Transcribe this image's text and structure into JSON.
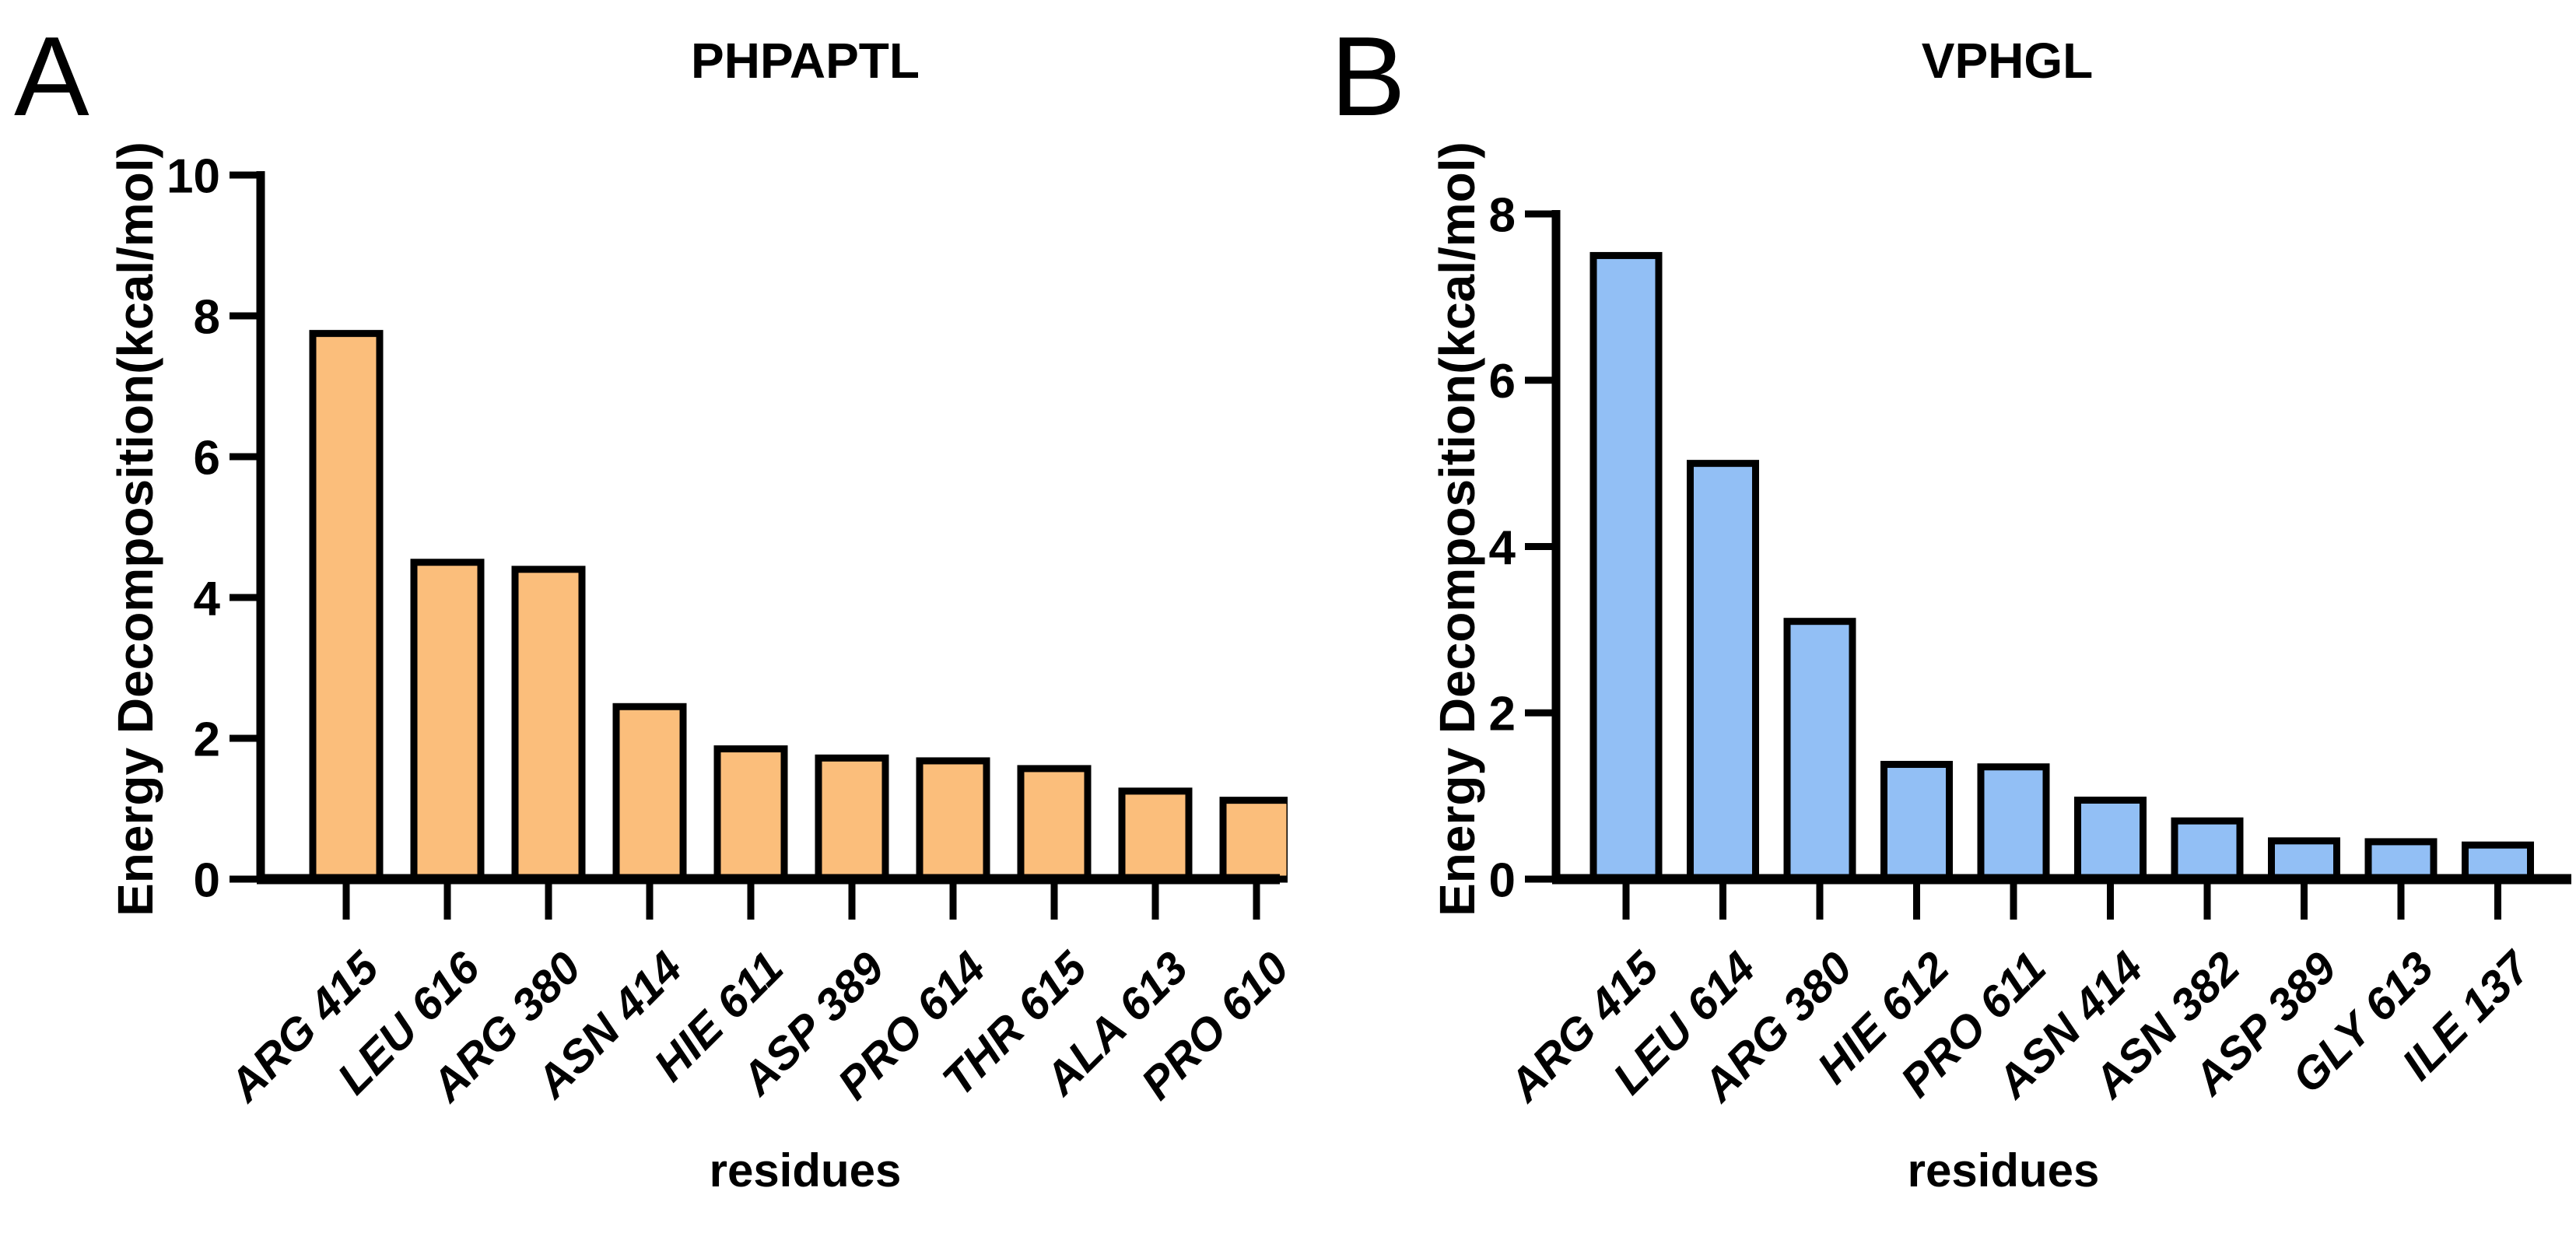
{
  "colors": {
    "background": "#FFFFFF",
    "axis": "#000000",
    "panel_a_bar_fill": "#FBBE7B",
    "panel_b_bar_fill": "#92BFF5",
    "bar_edge": "#000000",
    "text": "#000000"
  },
  "chart_data": [
    {
      "type": "bar",
      "panel_letter": "A",
      "title": "PHPAPTL",
      "xlabel": "residues",
      "ylabel": "Energy Decomposition(kcal/mol)",
      "categories": [
        "ARG 415",
        "LEU 616",
        "ARG 380",
        "ASN 414",
        "HIE 611",
        "ASP 389",
        "PRO 614",
        "THR 615",
        "ALA 613",
        "PRO 610"
      ],
      "values": [
        7.75,
        4.5,
        4.4,
        2.45,
        1.85,
        1.72,
        1.68,
        1.57,
        1.25,
        1.12
      ],
      "ylim": [
        0,
        10
      ],
      "ytick_step": 2,
      "yticks": [
        0,
        2,
        4,
        6,
        8,
        10
      ],
      "bar_fill": "#FBBE7B",
      "bar_edge": "#000000",
      "grid": false,
      "legend": false,
      "x_label_rotation_deg": -45
    },
    {
      "type": "bar",
      "panel_letter": "B",
      "title": "VPHGL",
      "xlabel": "residues",
      "ylabel": "Energy Decomposition(kcal/mol)",
      "categories": [
        "ARG 415",
        "LEU 614",
        "ARG 380",
        "HIE 612",
        "PRO 611",
        "ASN 414",
        "ASN 382",
        "ASP 389",
        "GLY 613",
        "ILE 137"
      ],
      "values": [
        7.5,
        5.0,
        3.1,
        1.38,
        1.35,
        0.95,
        0.7,
        0.46,
        0.45,
        0.41
      ],
      "ylim": [
        0,
        8
      ],
      "ytick_step": 2,
      "yticks": [
        0,
        2,
        4,
        6,
        8
      ],
      "bar_fill": "#92BFF5",
      "bar_edge": "#000000",
      "grid": false,
      "legend": false,
      "x_label_rotation_deg": -45
    }
  ]
}
